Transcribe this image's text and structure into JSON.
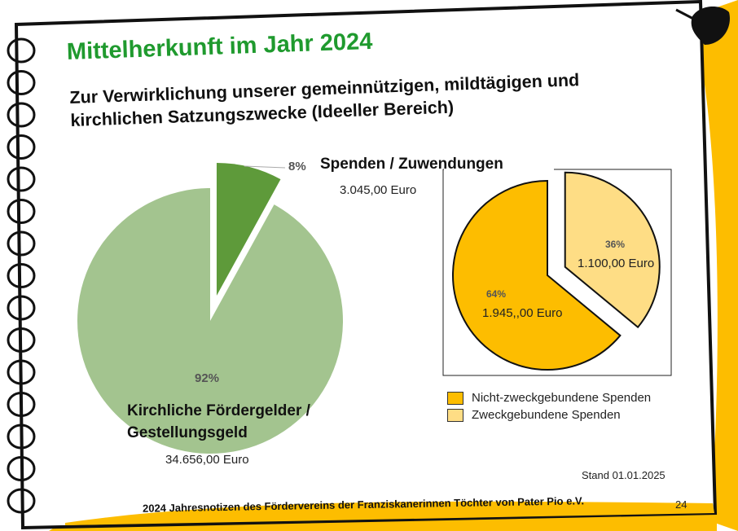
{
  "title": "Mittelherkunft im Jahr 2024",
  "subtitle_line1": "Zur Verwirklichung unserer gemeinnützigen, mildtägigen und",
  "subtitle_line2": "kirchlichen Satzungszwecke (Ideeller Bereich)",
  "stand": "Stand 01.01.2025",
  "footer": "2024 Jahresnotizen des Fördervereins der Franziskanerinnen Töchter von Pater Pio e.V.",
  "page_number": "24",
  "colors": {
    "green_dark": "#5e9a3a",
    "green_light": "#a3c48f",
    "orange": "#fdbd00",
    "yellow_light": "#fedd85",
    "title_green": "#1f9a2e",
    "accent_yellow": "#fdbd00"
  },
  "chart_data": [
    {
      "type": "pie",
      "title": "Mittelherkunft",
      "slices": [
        {
          "name": "Spenden / Zuwendungen",
          "value": 8,
          "label": "8%",
          "amount": "3.045,00 Euro",
          "color": "#5e9a3a",
          "exploded": true
        },
        {
          "name_line1": "Kirchliche Fördergelder /",
          "name_line2": "Gestellungsgeld",
          "value": 92,
          "label": "92%",
          "amount": "34.656,00 Euro",
          "color": "#a3c48f"
        }
      ]
    },
    {
      "type": "pie",
      "title": "Spenden / Zuwendungen",
      "slices": [
        {
          "name": "Zweckgebundene Spenden",
          "value": 36,
          "label": "36%",
          "amount": "1.100,00 Euro",
          "color": "#fedd85",
          "exploded": true
        },
        {
          "name": "Nicht-zweckgebundene Spenden",
          "value": 64,
          "label": "64%",
          "amount": "1.945,,00 Euro",
          "color": "#fdbd00"
        }
      ],
      "legend": [
        "Nicht-zweckgebundene Spenden",
        "Zweckgebundene Spenden"
      ],
      "legend_position": "bottom-left"
    }
  ]
}
